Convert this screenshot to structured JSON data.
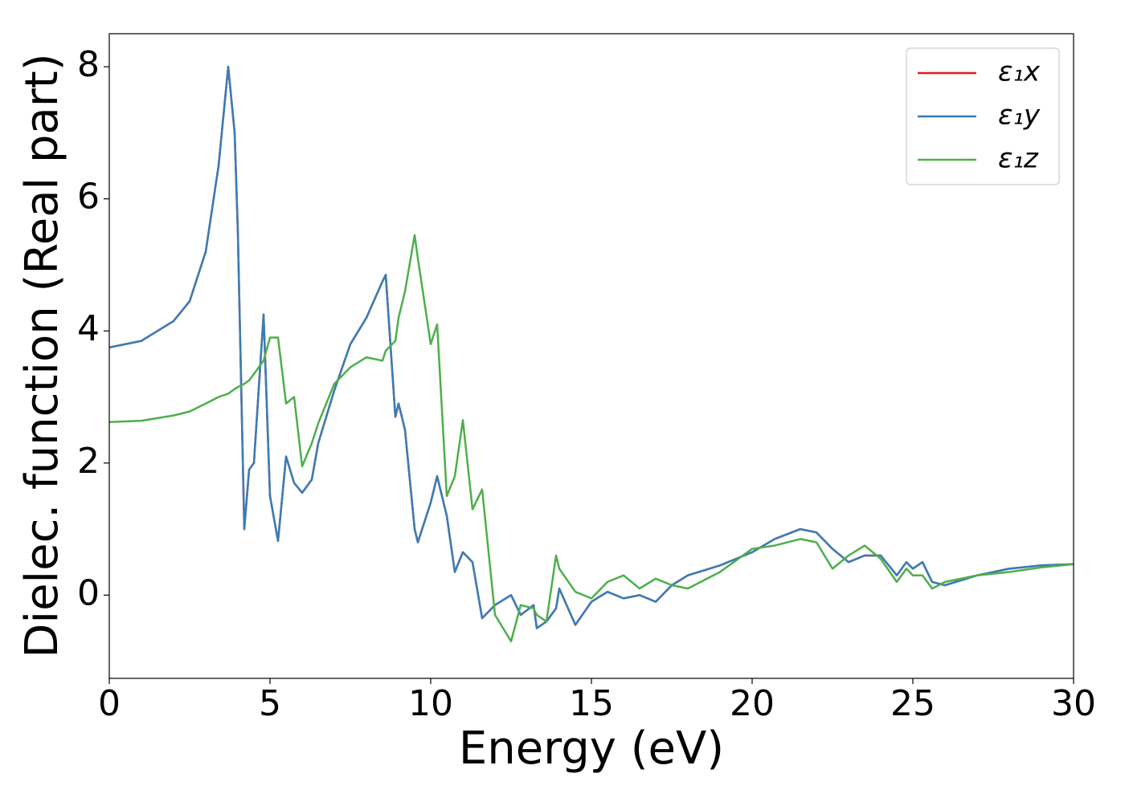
{
  "chart_data": {
    "type": "line",
    "xlabel": "Energy (eV)",
    "ylabel": "Dielec. function (Real part)",
    "xlim": [
      0,
      30
    ],
    "ylim": [
      -1.26,
      8.5
    ],
    "xticks": [
      0,
      5,
      10,
      15,
      20,
      25,
      30
    ],
    "yticks": [
      0,
      2,
      4,
      6,
      8
    ],
    "legend": "upper right",
    "x": [
      0,
      1,
      2,
      2.5,
      3,
      3.4,
      3.7,
      3.9,
      4.0,
      4.2,
      4.35,
      4.5,
      4.8,
      5.0,
      5.25,
      5.5,
      5.75,
      6.0,
      6.3,
      6.5,
      7,
      7.5,
      8,
      8.5,
      8.6,
      8.9,
      9.0,
      9.2,
      9.5,
      9.6,
      10,
      10.2,
      10.5,
      10.75,
      11,
      11.3,
      11.6,
      12,
      12.5,
      12.8,
      13.2,
      13.3,
      13.6,
      13.9,
      14,
      14.5,
      15,
      15.5,
      16,
      16.5,
      17,
      17.5,
      18,
      19,
      20,
      20.7,
      21.5,
      22,
      22.5,
      23,
      23.5,
      24,
      24.5,
      24.8,
      25,
      25.3,
      25.6,
      26,
      27,
      28,
      29,
      30
    ],
    "series": [
      {
        "name": "ε₁x",
        "color": "#e41a1c",
        "values": [
          3.75,
          3.85,
          4.15,
          4.45,
          5.2,
          6.5,
          8.0,
          7.0,
          5.5,
          1.0,
          1.9,
          2.0,
          4.25,
          1.5,
          0.82,
          2.1,
          1.7,
          1.55,
          1.75,
          2.3,
          3.1,
          3.8,
          4.2,
          4.75,
          4.85,
          2.7,
          2.9,
          2.5,
          1.0,
          0.8,
          1.4,
          1.8,
          1.2,
          0.35,
          0.65,
          0.5,
          -0.35,
          -0.15,
          0.0,
          -0.3,
          -0.15,
          -0.5,
          -0.4,
          -0.2,
          0.1,
          -0.45,
          -0.1,
          0.05,
          -0.05,
          0.0,
          -0.1,
          0.15,
          0.3,
          0.45,
          0.65,
          0.85,
          1.0,
          0.95,
          0.7,
          0.5,
          0.6,
          0.6,
          0.3,
          0.5,
          0.4,
          0.5,
          0.2,
          0.15,
          0.3,
          0.4,
          0.45,
          0.47
        ]
      },
      {
        "name": "ε₁y",
        "color": "#377eb8",
        "values": [
          3.75,
          3.85,
          4.15,
          4.45,
          5.2,
          6.5,
          8.0,
          7.0,
          5.5,
          1.0,
          1.9,
          2.0,
          4.25,
          1.5,
          0.82,
          2.1,
          1.7,
          1.55,
          1.75,
          2.3,
          3.1,
          3.8,
          4.2,
          4.75,
          4.85,
          2.7,
          2.9,
          2.5,
          1.0,
          0.8,
          1.4,
          1.8,
          1.2,
          0.35,
          0.65,
          0.5,
          -0.35,
          -0.15,
          0.0,
          -0.3,
          -0.15,
          -0.5,
          -0.4,
          -0.2,
          0.1,
          -0.45,
          -0.1,
          0.05,
          -0.05,
          0.0,
          -0.1,
          0.15,
          0.3,
          0.45,
          0.65,
          0.85,
          1.0,
          0.95,
          0.7,
          0.5,
          0.6,
          0.6,
          0.3,
          0.5,
          0.4,
          0.5,
          0.2,
          0.15,
          0.3,
          0.4,
          0.45,
          0.47
        ]
      },
      {
        "name": "ε₁z",
        "color": "#4daf4a",
        "values": [
          2.62,
          2.64,
          2.72,
          2.78,
          2.9,
          3.0,
          3.05,
          3.12,
          3.15,
          3.2,
          3.25,
          3.35,
          3.55,
          3.9,
          3.9,
          2.9,
          3.0,
          1.95,
          2.3,
          2.6,
          3.2,
          3.45,
          3.6,
          3.55,
          3.7,
          3.85,
          4.2,
          4.6,
          5.45,
          5.1,
          3.8,
          4.1,
          1.5,
          1.8,
          2.65,
          1.3,
          1.6,
          -0.3,
          -0.7,
          -0.15,
          -0.2,
          -0.3,
          -0.4,
          0.6,
          0.4,
          0.05,
          -0.05,
          0.2,
          0.3,
          0.1,
          0.25,
          0.15,
          0.1,
          0.35,
          0.7,
          0.75,
          0.85,
          0.8,
          0.4,
          0.6,
          0.75,
          0.55,
          0.2,
          0.4,
          0.3,
          0.3,
          0.1,
          0.2,
          0.3,
          0.35,
          0.42,
          0.47
        ]
      }
    ]
  }
}
